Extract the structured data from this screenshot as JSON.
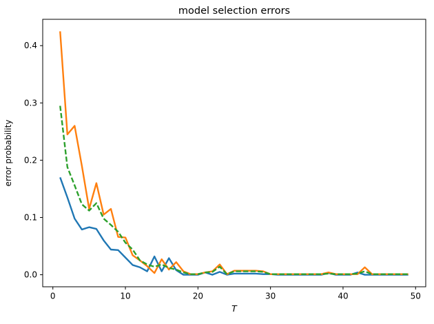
{
  "figure": {
    "background": "#ffffff",
    "spine_color": "#000000",
    "text_color": "#000000"
  },
  "chart_data": {
    "type": "line",
    "title": "model selection errors",
    "xlabel": "T",
    "ylabel": "error probability",
    "grid": false,
    "legend": "none",
    "xlim": [
      -1.4,
      51.4
    ],
    "ylim": [
      -0.021,
      0.446
    ],
    "x_ticks": [
      0,
      10,
      20,
      30,
      40,
      50
    ],
    "x_tick_labels": [
      "0",
      "10",
      "20",
      "30",
      "40",
      "50"
    ],
    "y_ticks": [
      0.0,
      0.1,
      0.2,
      0.3,
      0.4
    ],
    "y_tick_labels": [
      "0.0",
      "0.1",
      "0.2",
      "0.3",
      "0.4"
    ],
    "x": [
      1,
      2,
      3,
      4,
      5,
      6,
      7,
      8,
      9,
      10,
      11,
      12,
      13,
      14,
      15,
      16,
      17,
      18,
      19,
      20,
      21,
      22,
      23,
      24,
      25,
      26,
      27,
      28,
      29,
      30,
      31,
      32,
      33,
      34,
      35,
      36,
      37,
      38,
      39,
      40,
      41,
      42,
      43,
      44,
      45,
      46,
      47,
      48,
      49
    ],
    "series": [
      {
        "name": "blue-solid-series",
        "color": "#1f77b4",
        "style": "solid",
        "values": [
          0.17,
          0.135,
          0.098,
          0.079,
          0.083,
          0.08,
          0.06,
          0.044,
          0.043,
          0.03,
          0.017,
          0.013,
          0.006,
          0.032,
          0.006,
          0.029,
          0.008,
          0.0,
          0.0,
          0.0,
          0.004,
          0.0,
          0.005,
          0.0,
          0.002,
          0.002,
          0.002,
          0.002,
          0.001,
          0.001,
          0.0,
          0.0,
          0.0,
          0.0,
          0.0,
          0.0,
          0.0,
          0.003,
          0.0,
          0.0,
          0.0,
          0.004,
          0.0,
          0.0,
          0.0,
          0.0,
          0.0,
          0.0,
          0.0
        ]
      },
      {
        "name": "orange-solid-series",
        "color": "#ff7f0e",
        "style": "solid",
        "values": [
          0.425,
          0.245,
          0.26,
          0.19,
          0.115,
          0.16,
          0.105,
          0.115,
          0.066,
          0.065,
          0.034,
          0.025,
          0.015,
          0.003,
          0.027,
          0.009,
          0.022,
          0.006,
          0.001,
          0.001,
          0.004,
          0.006,
          0.018,
          0.001,
          0.007,
          0.007,
          0.007,
          0.007,
          0.006,
          0.001,
          0.001,
          0.001,
          0.001,
          0.001,
          0.001,
          0.001,
          0.001,
          0.004,
          0.001,
          0.001,
          0.001,
          0.001,
          0.013,
          0.001,
          0.001,
          0.001,
          0.001,
          0.001,
          0.001
        ]
      },
      {
        "name": "green-dashed-series",
        "color": "#2ca02c",
        "style": "dashed",
        "values": [
          0.295,
          0.188,
          0.156,
          0.123,
          0.112,
          0.125,
          0.098,
          0.087,
          0.075,
          0.056,
          0.044,
          0.025,
          0.018,
          0.014,
          0.018,
          0.012,
          0.009,
          0.004,
          0.001,
          0.001,
          0.004,
          0.005,
          0.014,
          0.001,
          0.006,
          0.006,
          0.006,
          0.006,
          0.005,
          0.001,
          0.001,
          0.001,
          0.001,
          0.001,
          0.001,
          0.001,
          0.001,
          0.002,
          0.001,
          0.001,
          0.001,
          0.002,
          0.006,
          0.001,
          0.001,
          0.001,
          0.001,
          0.001,
          0.001
        ]
      }
    ]
  }
}
